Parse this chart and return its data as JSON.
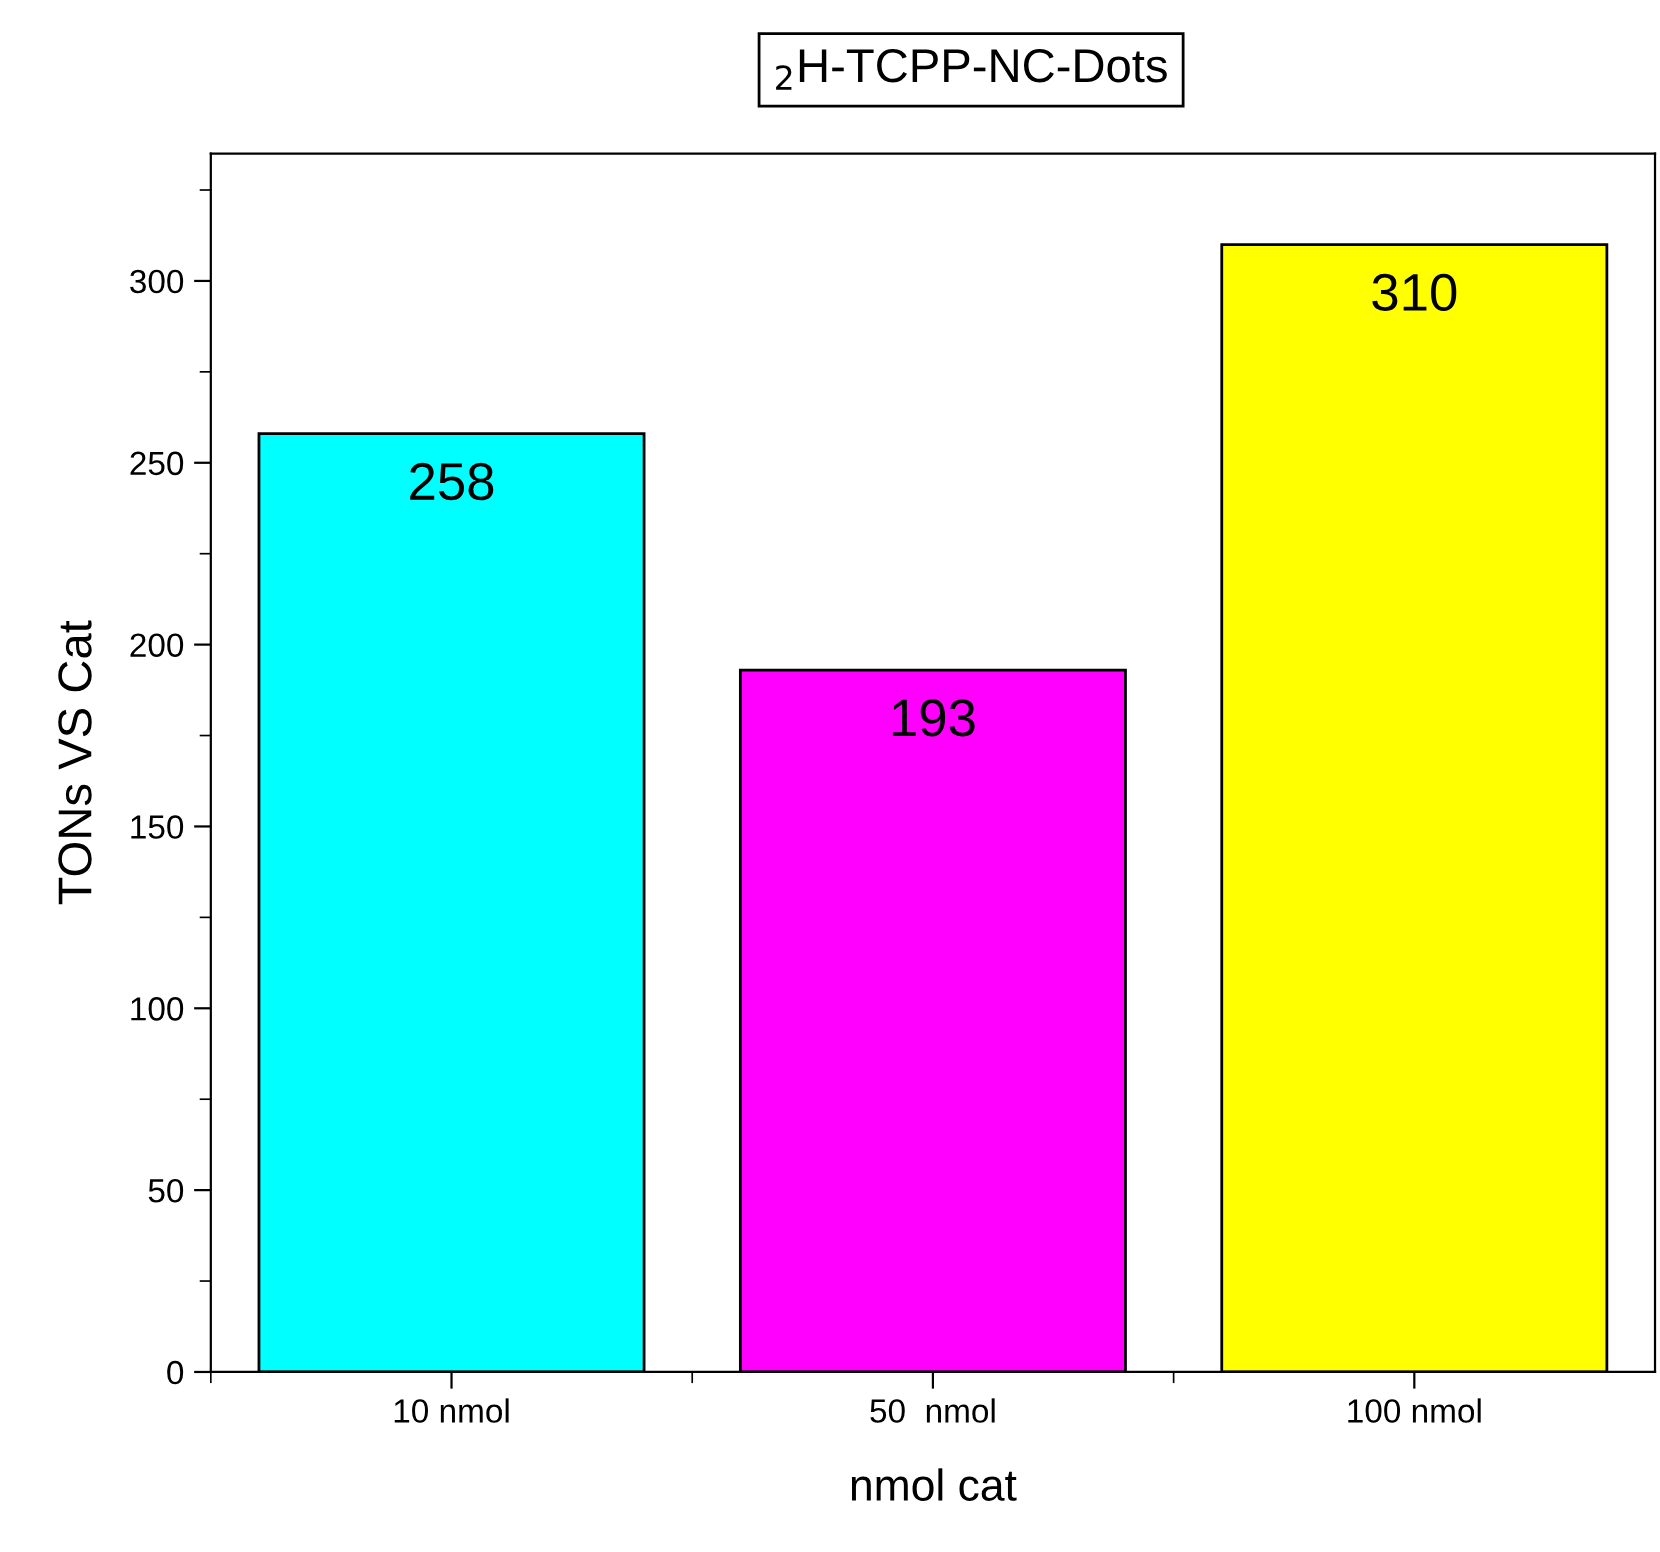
{
  "chart_data": {
    "type": "bar",
    "title": "$_{2}$H-TCPP-NC-Dots",
    "xlabel": "nmol cat",
    "ylabel": "TONs VS Cat",
    "categories": [
      "10 nmol",
      "50  nmol",
      "100 nmol"
    ],
    "values": [
      258,
      193,
      310
    ],
    "colors": [
      "#00ffff",
      "#ff00ff",
      "#ffff00"
    ],
    "ylim": [
      0,
      335
    ],
    "yticks": [
      0,
      50,
      100,
      150,
      200,
      250,
      300
    ],
    "data_labels": true,
    "grid": false,
    "legend": false
  }
}
